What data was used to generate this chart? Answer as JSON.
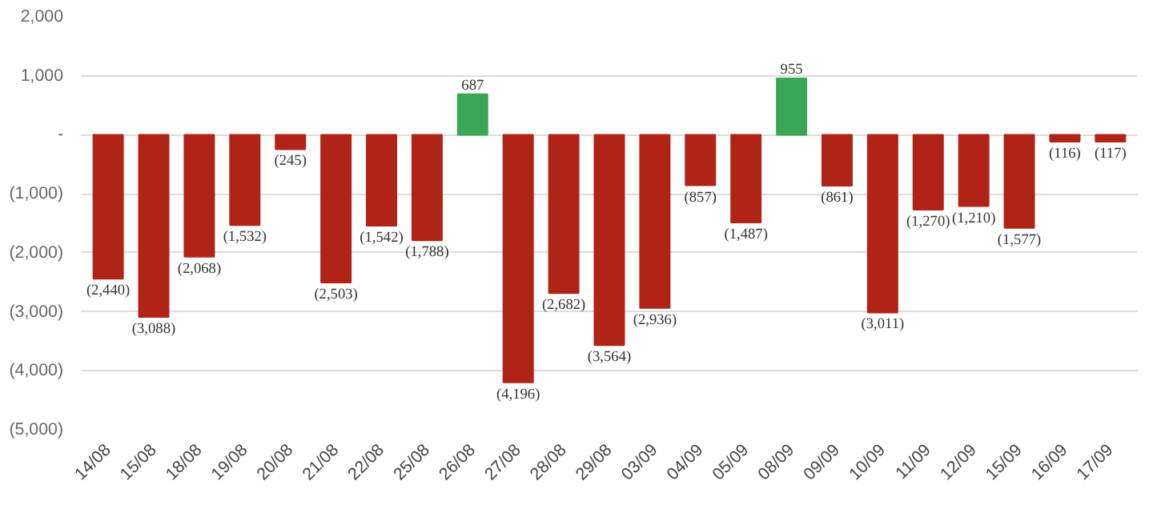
{
  "chart_data": {
    "type": "bar",
    "categories": [
      "14/08",
      "15/08",
      "18/08",
      "19/08",
      "20/08",
      "21/08",
      "22/08",
      "25/08",
      "26/08",
      "27/08",
      "28/08",
      "29/08",
      "03/09",
      "04/09",
      "05/09",
      "08/09",
      "09/09",
      "10/09",
      "11/09",
      "12/09",
      "15/09",
      "16/09",
      "17/09"
    ],
    "values": [
      -2440,
      -3088,
      -2068,
      -1532,
      -245,
      -2503,
      -1542,
      -1788,
      687,
      -4196,
      -2682,
      -3564,
      -2936,
      -857,
      -1487,
      955,
      -861,
      -3011,
      -1270,
      -1210,
      -1577,
      -116,
      -117
    ],
    "value_labels": [
      "(2,440)",
      "(3,088)",
      "(2,068)",
      "(1,532)",
      "(245)",
      "(2,503)",
      "(1,542)",
      "(1,788)",
      "687",
      "(4,196)",
      "(2,682)",
      "(3,564)",
      "(2,936)",
      "(857)",
      "(1,487)",
      "955",
      "(861)",
      "(3,011)",
      "(1,270)",
      "(1,210)",
      "(1,577)",
      "(116)",
      "(117)"
    ],
    "colors": [
      "#b02418",
      "#b02418",
      "#b02418",
      "#b02418",
      "#b02418",
      "#b02418",
      "#b02418",
      "#b02418",
      "#3aa657",
      "#b02418",
      "#b02418",
      "#b02418",
      "#b02418",
      "#b02418",
      "#b02418",
      "#3aa657",
      "#b02418",
      "#b02418",
      "#b02418",
      "#b02418",
      "#b02418",
      "#b02418",
      "#b02418"
    ],
    "ylim": [
      -5000,
      2000
    ],
    "yticks": [
      {
        "value": 2000,
        "label": "2,000"
      },
      {
        "value": 1000,
        "label": "1,000"
      },
      {
        "value": 0,
        "label": "-"
      },
      {
        "value": -1000,
        "label": "(1,000)"
      },
      {
        "value": -2000,
        "label": "(2,000)"
      },
      {
        "value": -3000,
        "label": "(3,000)"
      },
      {
        "value": -4000,
        "label": "(4,000)"
      },
      {
        "value": -5000,
        "label": "(5,000)"
      }
    ],
    "grid": "y"
  }
}
